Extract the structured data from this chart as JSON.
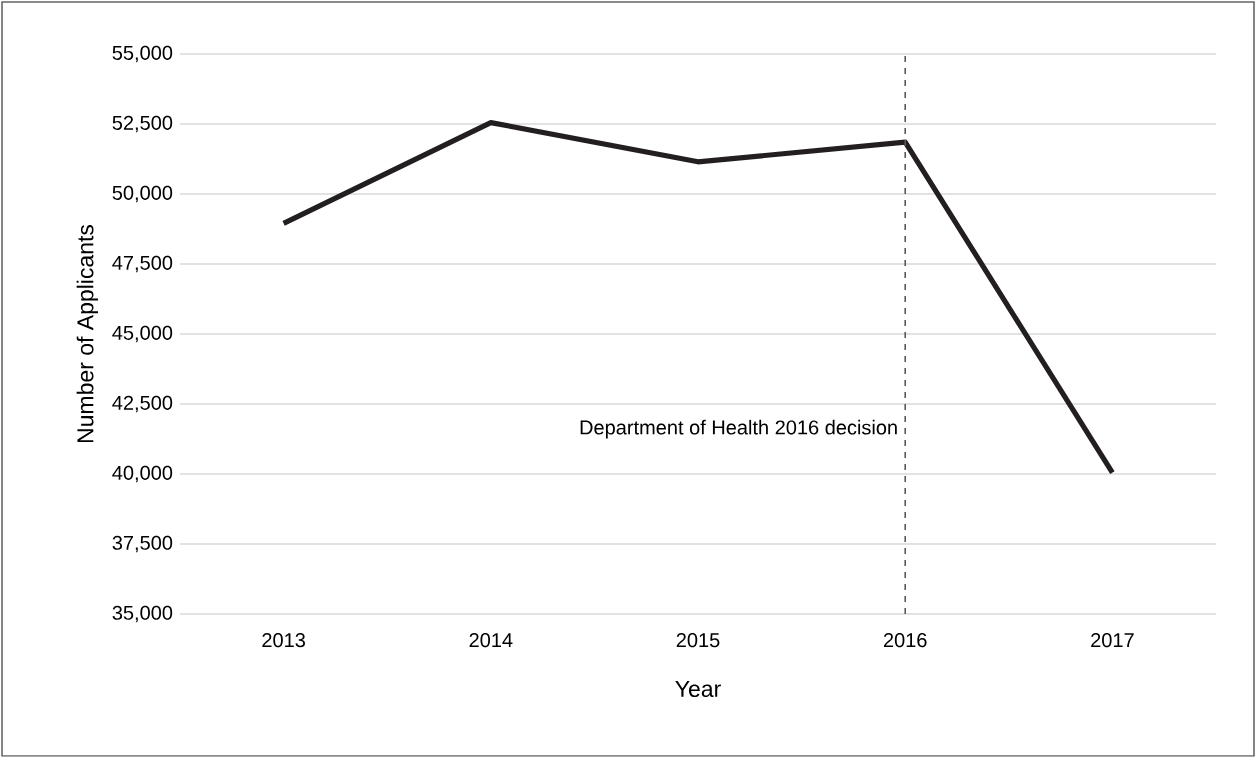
{
  "chart_data": {
    "type": "line",
    "xlabel": "Year",
    "ylabel": "Number of Applicants",
    "x": [
      2013,
      2014,
      2015,
      2016,
      2017
    ],
    "series": [
      {
        "color": "#231f20",
        "values": [
          48950,
          52550,
          51150,
          51850,
          40050
        ]
      }
    ],
    "xlim": [
      2012.5,
      2017.5
    ],
    "xticks": [
      2013,
      2014,
      2015,
      2016,
      2017
    ],
    "ylim": [
      35000,
      55000
    ],
    "yticks": [
      {
        "value": 35000,
        "label": "35,000"
      },
      {
        "value": 37500,
        "label": "37,500"
      },
      {
        "value": 40000,
        "label": "40,000"
      },
      {
        "value": 42500,
        "label": "42,500"
      },
      {
        "value": 45000,
        "label": "45,000"
      },
      {
        "value": 47500,
        "label": "47,500"
      },
      {
        "value": 50000,
        "label": "50,000"
      },
      {
        "value": 52500,
        "label": "52,500"
      },
      {
        "value": 55000,
        "label": "55,000"
      }
    ],
    "grid": "y",
    "marker": "none",
    "line_style": "solid",
    "ref_lines": [
      {
        "axis": "x",
        "value": 2016,
        "label": "Department of Health 2016 decision",
        "color": "#595959",
        "line_style": "dashed"
      }
    ]
  }
}
